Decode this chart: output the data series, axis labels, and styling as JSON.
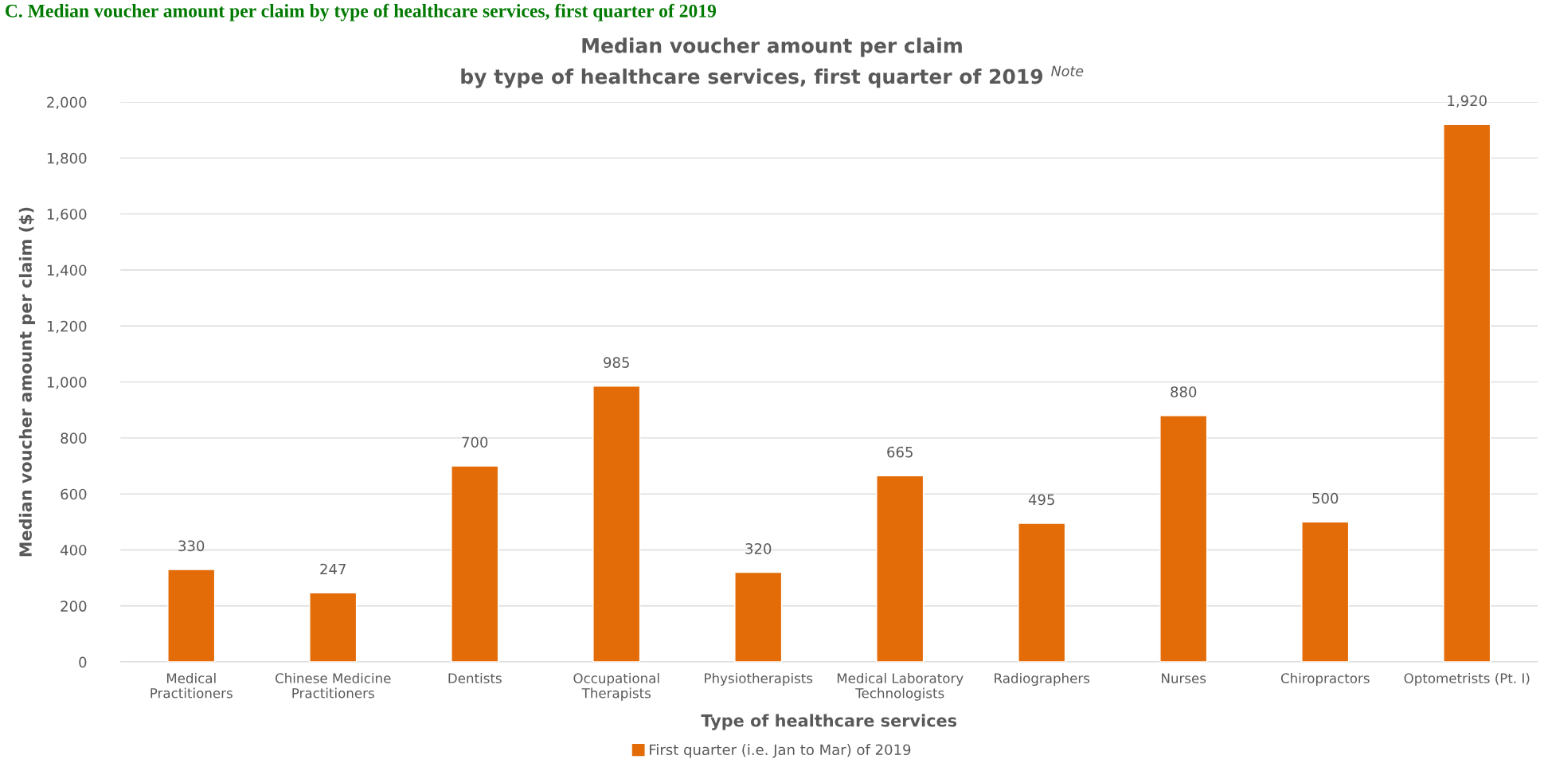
{
  "chart_data": {
    "type": "bar",
    "title": "Median voucher amount per claim\nby type of healthcare services, first quarter of 2019 $^{Note}$",
    "xlabel": "Type of healthcare services",
    "ylabel": "Median voucher amount per claim ($)",
    "annotations": [
      "C. Median voucher amount per claim by type of healthcare services, first quarter of 2019"
    ],
    "categories": [
      "Medical\nPractitioners",
      "Chinese Medicine\nPractitioners",
      "Dentists",
      "Occupational\nTherapists",
      "Physiotherapists",
      "Medical Laboratory\nTechnologists",
      "Radiographers",
      "Nurses",
      "Chiropractors",
      "Optometrists (Pt. I)"
    ],
    "series": [
      {
        "name": "First quarter (i.e. Jan to Mar) of 2019",
        "color": "#e36c09",
        "values": [
          330,
          247,
          700,
          985,
          320,
          665,
          495,
          880,
          500,
          1920
        ]
      }
    ],
    "ylim": [
      0,
      2000
    ],
    "yticks": [
      0,
      {
        "value": 200,
        "label": "200"
      },
      {
        "value": 400,
        "label": "400"
      },
      {
        "value": 600,
        "label": "600"
      },
      {
        "value": 800,
        "label": "800"
      },
      {
        "value": 1000,
        "label": "1,000"
      },
      {
        "value": 1200,
        "label": "1,200"
      },
      {
        "value": 1400,
        "label": "1,400"
      },
      {
        "value": 1600,
        "label": "1,600"
      },
      {
        "value": 1800,
        "label": "1,800"
      },
      {
        "value": 2000,
        "label": "2,000"
      }
    ],
    "grid": "y",
    "legend": "bottom",
    "value_labels": [
      "330",
      "247",
      "700",
      "985",
      "320",
      "665",
      "495",
      "880",
      "500",
      "1,920"
    ]
  }
}
